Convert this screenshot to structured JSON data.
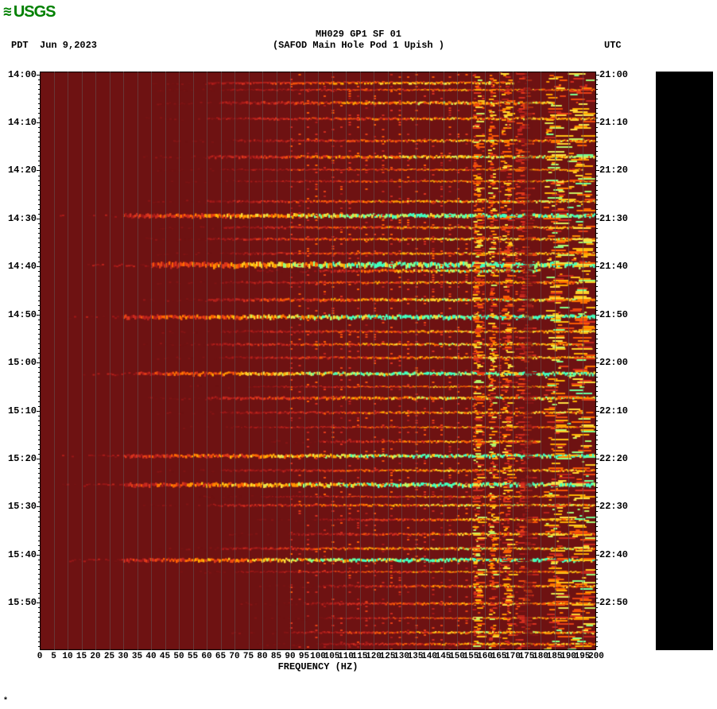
{
  "logo": {
    "mark": "≋",
    "text": "USGS"
  },
  "header": {
    "title": "MH029 GP1 SF 01",
    "subtitle": "(SAFOD Main Hole Pod 1 Upish )"
  },
  "tz_left": "PDT",
  "date": "Jun 9,2023",
  "tz_right": "UTC",
  "xlabel": "FREQUENCY (HZ)",
  "footer_mark": "*",
  "chart": {
    "type": "heatmap_spectrogram",
    "background_color": "#6e1212",
    "grid_color": "#7a5a5a",
    "x_min": 0,
    "x_max": 200,
    "x_tick_step": 5,
    "x_ticks": [
      0,
      5,
      10,
      15,
      20,
      25,
      30,
      35,
      40,
      45,
      50,
      55,
      60,
      65,
      70,
      75,
      80,
      85,
      90,
      95,
      100,
      105,
      110,
      115,
      120,
      125,
      130,
      135,
      140,
      145,
      150,
      155,
      160,
      165,
      170,
      175,
      180,
      185,
      190,
      195,
      200
    ],
    "y_left_labels": [
      "14:00",
      "14:10",
      "14:20",
      "14:30",
      "14:40",
      "14:50",
      "15:00",
      "15:10",
      "15:20",
      "15:30",
      "15:40",
      "15:50"
    ],
    "y_right_labels": [
      "21:00",
      "21:10",
      "21:20",
      "21:30",
      "21:40",
      "21:50",
      "22:00",
      "22:10",
      "22:20",
      "22:30",
      "22:40",
      "22:50"
    ],
    "y_positions_pct": [
      0.5,
      8.8,
      17.1,
      25.4,
      33.7,
      42.0,
      50.3,
      58.6,
      66.9,
      75.2,
      83.5,
      91.8
    ],
    "minor_per_major": 10,
    "colorbar_color": "#000000",
    "colormap_stops": [
      "#3a0808",
      "#6e1212",
      "#a01818",
      "#d83020",
      "#ff6000",
      "#ffb000",
      "#ffe040",
      "#90ff80",
      "#40ffc0"
    ],
    "label_fontsize": 12,
    "label_fontweight": "bold",
    "bands": [
      {
        "t": 2.0,
        "f0": 60,
        "f1": 170,
        "int": 0.55,
        "w": 0.4
      },
      {
        "t": 3.2,
        "f0": 65,
        "f1": 200,
        "int": 0.5,
        "w": 0.3
      },
      {
        "t": 5.5,
        "f0": 65,
        "f1": 185,
        "int": 0.6,
        "w": 0.5
      },
      {
        "t": 8.2,
        "f0": 60,
        "f1": 200,
        "int": 0.55,
        "w": 0.4
      },
      {
        "t": 12.0,
        "f0": 70,
        "f1": 200,
        "int": 0.55,
        "w": 0.4
      },
      {
        "t": 14.8,
        "f0": 60,
        "f1": 200,
        "int": 0.65,
        "w": 0.5
      },
      {
        "t": 17.0,
        "f0": 65,
        "f1": 195,
        "int": 0.5,
        "w": 0.3
      },
      {
        "t": 19.0,
        "f0": 70,
        "f1": 200,
        "int": 0.5,
        "w": 0.3
      },
      {
        "t": 22.5,
        "f0": 60,
        "f1": 200,
        "int": 0.6,
        "w": 0.4
      },
      {
        "t": 25.0,
        "f0": 30,
        "f1": 200,
        "int": 0.88,
        "w": 0.7
      },
      {
        "t": 27.0,
        "f0": 65,
        "f1": 195,
        "int": 0.55,
        "w": 0.4
      },
      {
        "t": 29.0,
        "f0": 60,
        "f1": 200,
        "int": 0.6,
        "w": 0.4
      },
      {
        "t": 31.5,
        "f0": 65,
        "f1": 200,
        "int": 0.55,
        "w": 0.4
      },
      {
        "t": 33.5,
        "f0": 40,
        "f1": 200,
        "int": 0.95,
        "w": 0.9
      },
      {
        "t": 34.5,
        "f0": 100,
        "f1": 180,
        "int": 0.7,
        "w": 0.5
      },
      {
        "t": 36.5,
        "f0": 65,
        "f1": 195,
        "int": 0.55,
        "w": 0.4
      },
      {
        "t": 39.5,
        "f0": 60,
        "f1": 200,
        "int": 0.65,
        "w": 0.5
      },
      {
        "t": 42.5,
        "f0": 30,
        "f1": 200,
        "int": 0.92,
        "w": 0.7
      },
      {
        "t": 45.0,
        "f0": 65,
        "f1": 200,
        "int": 0.55,
        "w": 0.4
      },
      {
        "t": 47.2,
        "f0": 60,
        "f1": 195,
        "int": 0.6,
        "w": 0.4
      },
      {
        "t": 49.5,
        "f0": 65,
        "f1": 200,
        "int": 0.55,
        "w": 0.4
      },
      {
        "t": 52.3,
        "f0": 35,
        "f1": 200,
        "int": 0.9,
        "w": 0.6
      },
      {
        "t": 54.5,
        "f0": 75,
        "f1": 185,
        "int": 0.5,
        "w": 0.3
      },
      {
        "t": 56.5,
        "f0": 60,
        "f1": 200,
        "int": 0.65,
        "w": 0.5
      },
      {
        "t": 59.0,
        "f0": 65,
        "f1": 195,
        "int": 0.55,
        "w": 0.4
      },
      {
        "t": 61.5,
        "f0": 70,
        "f1": 200,
        "int": 0.5,
        "w": 0.3
      },
      {
        "t": 64.0,
        "f0": 100,
        "f1": 180,
        "int": 0.55,
        "w": 0.4
      },
      {
        "t": 66.5,
        "f0": 30,
        "f1": 200,
        "int": 0.85,
        "w": 0.6
      },
      {
        "t": 69.0,
        "f0": 65,
        "f1": 200,
        "int": 0.55,
        "w": 0.4
      },
      {
        "t": 71.5,
        "f0": 30,
        "f1": 200,
        "int": 0.92,
        "w": 0.7
      },
      {
        "t": 73.5,
        "f0": 80,
        "f1": 190,
        "int": 0.5,
        "w": 0.3
      },
      {
        "t": 75.0,
        "f0": 60,
        "f1": 200,
        "int": 0.6,
        "w": 0.4
      },
      {
        "t": 77.5,
        "f0": 100,
        "f1": 195,
        "int": 0.55,
        "w": 0.4
      },
      {
        "t": 80.0,
        "f0": 90,
        "f1": 200,
        "int": 0.55,
        "w": 0.4
      },
      {
        "t": 82.5,
        "f0": 65,
        "f1": 200,
        "int": 0.6,
        "w": 0.4
      },
      {
        "t": 84.5,
        "f0": 30,
        "f1": 200,
        "int": 0.88,
        "w": 0.6
      },
      {
        "t": 86.5,
        "f0": 70,
        "f1": 195,
        "int": 0.5,
        "w": 0.3
      },
      {
        "t": 89.0,
        "f0": 100,
        "f1": 200,
        "int": 0.55,
        "w": 0.4
      },
      {
        "t": 92.0,
        "f0": 95,
        "f1": 200,
        "int": 0.55,
        "w": 0.4
      },
      {
        "t": 94.5,
        "f0": 100,
        "f1": 195,
        "int": 0.5,
        "w": 0.3
      },
      {
        "t": 97.0,
        "f0": 90,
        "f1": 200,
        "int": 0.6,
        "w": 0.4
      },
      {
        "t": 99.0,
        "f0": 100,
        "f1": 200,
        "int": 0.55,
        "w": 0.4
      }
    ],
    "speckle_columns": [
      {
        "x": 156,
        "w": 3,
        "int": 0.7
      },
      {
        "x": 162,
        "w": 2,
        "int": 0.7
      },
      {
        "x": 167,
        "w": 3,
        "int": 0.65
      },
      {
        "x": 173,
        "w": 4,
        "int": 0.4
      },
      {
        "x": 184,
        "w": 6,
        "int": 0.75
      },
      {
        "x": 193,
        "w": 7,
        "int": 0.78
      }
    ]
  }
}
